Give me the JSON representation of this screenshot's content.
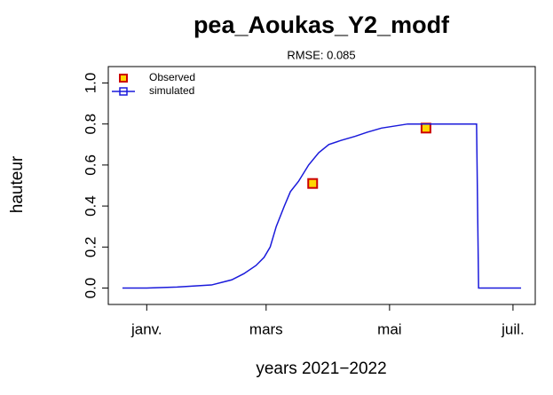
{
  "chart_data": {
    "type": "line",
    "title": "pea_Aoukas_Y2_modf",
    "subtitle": "RMSE: 0.085",
    "x_label": "years 2021−2022",
    "y_label": "hauteur",
    "xlim": [
      -19,
      192
    ],
    "ylim": [
      -0.08,
      1.08
    ],
    "xticks": [
      {
        "value": 0,
        "label": "janv."
      },
      {
        "value": 59,
        "label": "mars"
      },
      {
        "value": 120,
        "label": "mai"
      },
      {
        "value": 181,
        "label": "juil."
      }
    ],
    "yticks": [
      {
        "value": 0,
        "label": "0.0"
      },
      {
        "value": 0.2,
        "label": "0.2"
      },
      {
        "value": 0.4,
        "label": "0.4"
      },
      {
        "value": 0.6,
        "label": "0.6"
      },
      {
        "value": 0.8,
        "label": "0.8"
      },
      {
        "value": 1,
        "label": "1.0"
      }
    ],
    "legend": "top-left",
    "series": [
      {
        "name": "Observed",
        "type": "scatter",
        "color": "#cc0000",
        "fill": "#ffd700",
        "x": [
          82,
          138
        ],
        "values": [
          0.51,
          0.78
        ]
      },
      {
        "name": "simulated",
        "type": "line",
        "color": "#1a1adb",
        "x": [
          -12,
          0,
          15,
          32,
          42,
          48,
          54,
          58,
          61,
          64,
          68,
          71,
          75,
          80,
          85,
          90,
          96,
          103,
          109,
          116,
          129,
          163,
          164,
          185
        ],
        "values": [
          0,
          0,
          0.005,
          0.015,
          0.04,
          0.07,
          0.11,
          0.15,
          0.2,
          0.3,
          0.4,
          0.47,
          0.52,
          0.6,
          0.66,
          0.7,
          0.72,
          0.74,
          0.76,
          0.78,
          0.8,
          0.8,
          0,
          0
        ]
      }
    ]
  }
}
